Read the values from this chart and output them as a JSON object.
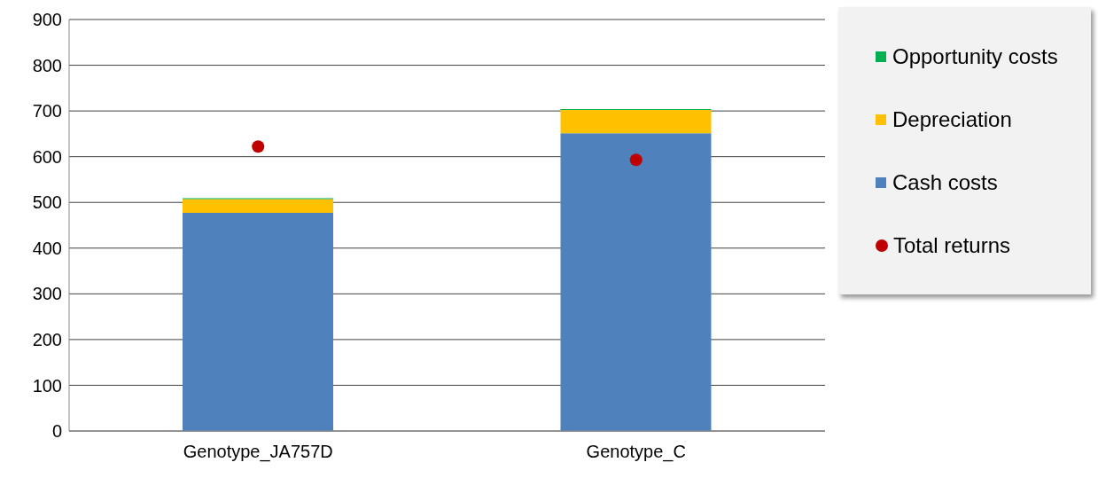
{
  "chart_data": {
    "type": "bar",
    "stacked": true,
    "categories": [
      "Genotype_JA757D",
      "Genotype_C"
    ],
    "series": [
      {
        "name": "Cash costs",
        "color": "#4f81bd",
        "values": [
          477,
          651
        ]
      },
      {
        "name": "Depreciation",
        "color": "#ffc000",
        "values": [
          30,
          51
        ]
      },
      {
        "name": "Opportunity costs",
        "color": "#00b050",
        "values": [
          2,
          2
        ]
      },
      {
        "name": "Total returns",
        "type": "scatter",
        "color": "#c00000",
        "values": [
          622,
          593
        ]
      }
    ],
    "ylim": [
      0,
      900
    ],
    "yticks": [
      0,
      100,
      200,
      300,
      400,
      500,
      600,
      700,
      800,
      900
    ],
    "grid": "y",
    "legend": "right",
    "marker": "circle"
  }
}
